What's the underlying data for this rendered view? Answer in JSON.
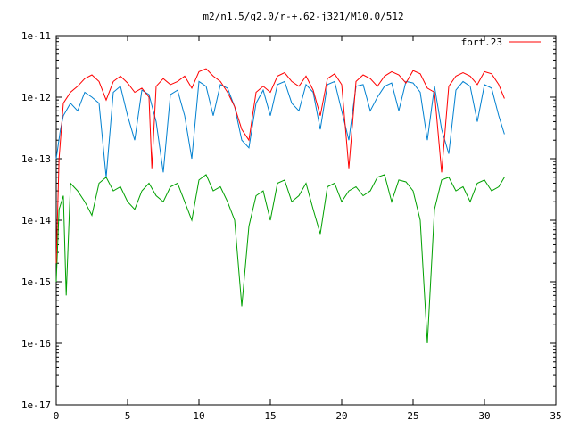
{
  "chart_data": {
    "type": "line",
    "title": "m2/n1.5/q2.0/r-+.62-j321/M10.0/512",
    "xlabel": "",
    "ylabel": "",
    "xlim": [
      0,
      35
    ],
    "ylim": [
      1e-17,
      1e-11
    ],
    "y_scale": "log",
    "grid": false,
    "legend_position": "top-right",
    "x_ticks": [
      "0",
      "5",
      "10",
      "15",
      "20",
      "25",
      "30",
      "35"
    ],
    "y_ticks": [
      "1e-17",
      "1e-16",
      "1e-15",
      "1e-14",
      "1e-13",
      "1e-12",
      "1e-11"
    ],
    "series": [
      {
        "name": "fort.23",
        "color": "#ff0000",
        "x": [
          0.0,
          0.2,
          0.5,
          1.0,
          1.5,
          2.0,
          2.5,
          3.0,
          3.5,
          4.0,
          4.5,
          5.0,
          5.5,
          6.0,
          6.5,
          6.7,
          7.0,
          7.5,
          8.0,
          8.5,
          9.0,
          9.5,
          10.0,
          10.5,
          11.0,
          11.5,
          12.0,
          12.5,
          13.0,
          13.5,
          14.0,
          14.5,
          15.0,
          15.5,
          16.0,
          16.5,
          17.0,
          17.5,
          18.0,
          18.5,
          19.0,
          19.5,
          20.0,
          20.5,
          21.0,
          21.5,
          22.0,
          22.5,
          23.0,
          23.5,
          24.0,
          24.5,
          25.0,
          25.5,
          26.0,
          26.5,
          27.0,
          27.5,
          28.0,
          28.5,
          29.0,
          29.5,
          30.0,
          30.5,
          31.0,
          31.4
        ],
        "y": [
          2e-15,
          1e-13,
          8e-13,
          1.2e-12,
          1.5e-12,
          2e-12,
          2.3e-12,
          1.8e-12,
          9e-13,
          1.8e-12,
          2.2e-12,
          1.7e-12,
          1.2e-12,
          1.4e-12,
          1e-12,
          7e-14,
          1.5e-12,
          2e-12,
          1.6e-12,
          1.8e-12,
          2.2e-12,
          1.4e-12,
          2.6e-12,
          2.9e-12,
          2.2e-12,
          1.8e-12,
          1.2e-12,
          7e-13,
          3e-13,
          2e-13,
          1.2e-12,
          1.5e-12,
          1.2e-12,
          2.2e-12,
          2.5e-12,
          1.8e-12,
          1.5e-12,
          2.2e-12,
          1.3e-12,
          5e-13,
          2e-12,
          2.4e-12,
          1.6e-12,
          7e-14,
          1.8e-12,
          2.3e-12,
          2e-12,
          1.5e-12,
          2.2e-12,
          2.6e-12,
          2.3e-12,
          1.7e-12,
          2.7e-12,
          2.4e-12,
          1.4e-12,
          1.2e-12,
          6e-14,
          1.5e-12,
          2.2e-12,
          2.5e-12,
          2.2e-12,
          1.6e-12,
          2.6e-12,
          2.4e-12,
          1.6e-12,
          9.5e-13
        ]
      },
      {
        "color": "#0080d0",
        "x": [
          0.0,
          0.3,
          0.5,
          1.0,
          1.5,
          2.0,
          2.5,
          3.0,
          3.5,
          4.0,
          4.5,
          5.0,
          5.5,
          6.0,
          6.5,
          7.0,
          7.5,
          8.0,
          8.5,
          9.0,
          9.5,
          10.0,
          10.5,
          11.0,
          11.5,
          12.0,
          12.5,
          13.0,
          13.5,
          14.0,
          14.5,
          15.0,
          15.5,
          16.0,
          16.5,
          17.0,
          17.5,
          18.0,
          18.5,
          19.0,
          19.5,
          20.0,
          20.5,
          21.0,
          21.5,
          22.0,
          22.5,
          23.0,
          23.5,
          24.0,
          24.5,
          25.0,
          25.5,
          26.0,
          26.5,
          27.0,
          27.5,
          28.0,
          28.5,
          29.0,
          29.5,
          30.0,
          30.5,
          31.0,
          31.4
        ],
        "y": [
          1e-13,
          3e-13,
          5e-13,
          8e-13,
          6e-13,
          1.2e-12,
          1e-12,
          8e-13,
          5e-14,
          1.2e-12,
          1.5e-12,
          5e-13,
          2e-13,
          1.3e-12,
          1.1e-12,
          4e-13,
          6e-14,
          1.1e-12,
          1.3e-12,
          5e-13,
          1e-13,
          1.8e-12,
          1.5e-12,
          5e-13,
          1.6e-12,
          1.4e-12,
          7e-13,
          2e-13,
          1.5e-13,
          8e-13,
          1.3e-12,
          5e-13,
          1.6e-12,
          1.8e-12,
          8e-13,
          6e-13,
          1.6e-12,
          1.2e-12,
          3e-13,
          1.6e-12,
          1.8e-12,
          6e-13,
          2e-13,
          1.5e-12,
          1.6e-12,
          6e-13,
          1e-12,
          1.5e-12,
          1.7e-12,
          6e-13,
          1.8e-12,
          1.7e-12,
          1.2e-12,
          2e-13,
          1.5e-12,
          3e-13,
          1.2e-13,
          1.3e-12,
          1.8e-12,
          1.5e-12,
          4e-13,
          1.6e-12,
          1.4e-12,
          5e-13,
          2.5e-13
        ]
      },
      {
        "color": "#00a000",
        "x": [
          0.0,
          0.2,
          0.5,
          0.7,
          1.0,
          1.5,
          2.0,
          2.5,
          3.0,
          3.5,
          4.0,
          4.5,
          5.0,
          5.5,
          6.0,
          6.5,
          7.0,
          7.5,
          8.0,
          8.5,
          9.0,
          9.5,
          10.0,
          10.5,
          11.0,
          11.5,
          12.0,
          12.5,
          13.0,
          13.5,
          14.0,
          14.5,
          15.0,
          15.5,
          16.0,
          16.5,
          17.0,
          17.5,
          18.0,
          18.5,
          19.0,
          19.5,
          20.0,
          20.5,
          21.0,
          21.5,
          22.0,
          22.5,
          23.0,
          23.5,
          24.0,
          24.5,
          25.0,
          25.5,
          26.0,
          26.5,
          27.0,
          27.5,
          28.0,
          28.5,
          29.0,
          29.5,
          30.0,
          30.5,
          31.0,
          31.4
        ],
        "y": [
          1e-15,
          1.5e-14,
          2.5e-14,
          6e-16,
          4e-14,
          3e-14,
          2e-14,
          1.2e-14,
          4e-14,
          5e-14,
          3e-14,
          3.5e-14,
          2e-14,
          1.5e-14,
          3e-14,
          4e-14,
          2.5e-14,
          2e-14,
          3.5e-14,
          4e-14,
          2e-14,
          1e-14,
          4.5e-14,
          5.5e-14,
          3e-14,
          3.5e-14,
          2e-14,
          1e-14,
          4e-16,
          8e-15,
          2.5e-14,
          3e-14,
          1e-14,
          4e-14,
          4.5e-14,
          2e-14,
          2.5e-14,
          4e-14,
          1.5e-14,
          6e-15,
          3.5e-14,
          4e-14,
          2e-14,
          3e-14,
          3.5e-14,
          2.5e-14,
          3e-14,
          5e-14,
          5.5e-14,
          2e-14,
          4.5e-14,
          4.2e-14,
          3e-14,
          1e-14,
          1e-16,
          1.5e-14,
          4.5e-14,
          5e-14,
          3e-14,
          3.5e-14,
          2e-14,
          4e-14,
          4.5e-14,
          3e-14,
          3.5e-14,
          5e-14
        ]
      }
    ]
  }
}
